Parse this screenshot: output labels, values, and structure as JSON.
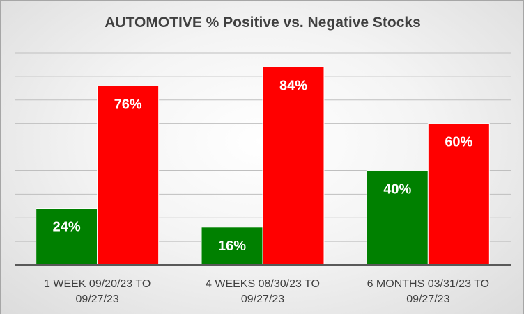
{
  "chart_data": {
    "type": "bar",
    "title": "AUTOMOTIVE % Positive vs. Negative Stocks",
    "categories": [
      [
        "1 WEEK 09/20/23 TO",
        "09/27/23"
      ],
      [
        "4 WEEKS 08/30/23 TO",
        "09/27/23"
      ],
      [
        "6 MONTHS 03/31/23 TO",
        "09/27/23"
      ]
    ],
    "series": [
      {
        "color": "#008000",
        "values": [
          24,
          16,
          40
        ],
        "labels": [
          "24%",
          "16%",
          "40%"
        ]
      },
      {
        "color": "#ff0000",
        "values": [
          76,
          84,
          60
        ],
        "labels": [
          "76%",
          "84%",
          "60%"
        ]
      }
    ],
    "ylim": [
      0,
      90
    ],
    "grid": true,
    "legend": "none"
  }
}
